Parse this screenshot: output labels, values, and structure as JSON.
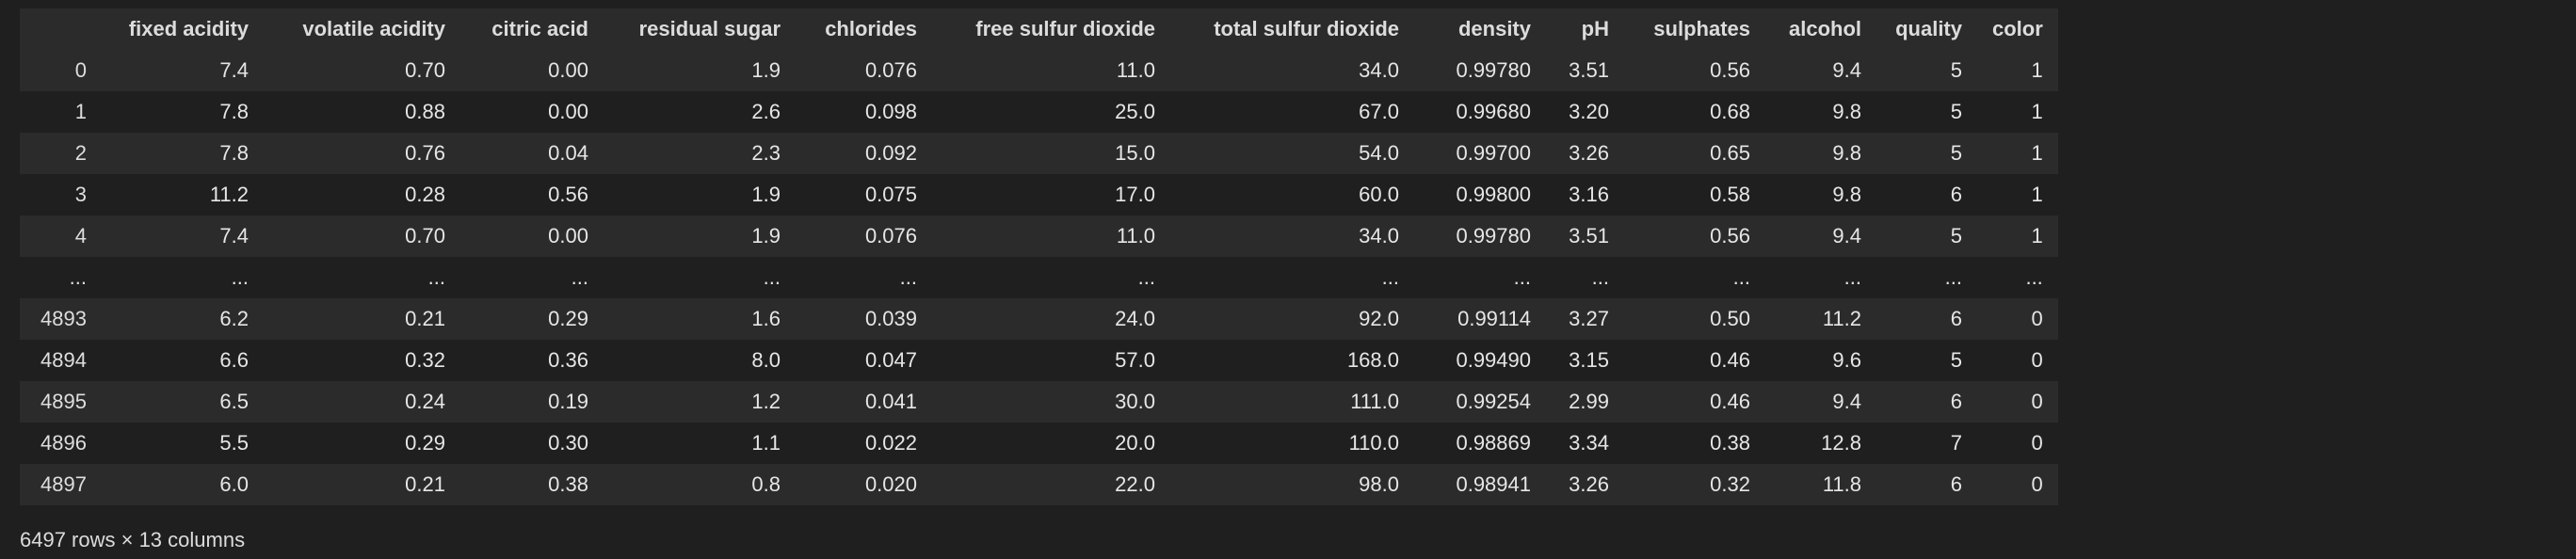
{
  "dataframe": {
    "columns": [
      "",
      "fixed acidity",
      "volatile acidity",
      "citric acid",
      "residual sugar",
      "chlorides",
      "free sulfur dioxide",
      "total sulfur dioxide",
      "density",
      "pH",
      "sulphates",
      "alcohol",
      "quality",
      "color"
    ],
    "rows": [
      [
        "0",
        "7.4",
        "0.70",
        "0.00",
        "1.9",
        "0.076",
        "11.0",
        "34.0",
        "0.99780",
        "3.51",
        "0.56",
        "9.4",
        "5",
        "1"
      ],
      [
        "1",
        "7.8",
        "0.88",
        "0.00",
        "2.6",
        "0.098",
        "25.0",
        "67.0",
        "0.99680",
        "3.20",
        "0.68",
        "9.8",
        "5",
        "1"
      ],
      [
        "2",
        "7.8",
        "0.76",
        "0.04",
        "2.3",
        "0.092",
        "15.0",
        "54.0",
        "0.99700",
        "3.26",
        "0.65",
        "9.8",
        "5",
        "1"
      ],
      [
        "3",
        "11.2",
        "0.28",
        "0.56",
        "1.9",
        "0.075",
        "17.0",
        "60.0",
        "0.99800",
        "3.16",
        "0.58",
        "9.8",
        "6",
        "1"
      ],
      [
        "4",
        "7.4",
        "0.70",
        "0.00",
        "1.9",
        "0.076",
        "11.0",
        "34.0",
        "0.99780",
        "3.51",
        "0.56",
        "9.4",
        "5",
        "1"
      ],
      [
        "...",
        "...",
        "...",
        "...",
        "...",
        "...",
        "...",
        "...",
        "...",
        "...",
        "...",
        "...",
        "...",
        "..."
      ],
      [
        "4893",
        "6.2",
        "0.21",
        "0.29",
        "1.6",
        "0.039",
        "24.0",
        "92.0",
        "0.99114",
        "3.27",
        "0.50",
        "11.2",
        "6",
        "0"
      ],
      [
        "4894",
        "6.6",
        "0.32",
        "0.36",
        "8.0",
        "0.047",
        "57.0",
        "168.0",
        "0.99490",
        "3.15",
        "0.46",
        "9.6",
        "5",
        "0"
      ],
      [
        "4895",
        "6.5",
        "0.24",
        "0.19",
        "1.2",
        "0.041",
        "30.0",
        "111.0",
        "0.99254",
        "2.99",
        "0.46",
        "9.4",
        "6",
        "0"
      ],
      [
        "4896",
        "5.5",
        "0.29",
        "0.30",
        "1.1",
        "0.022",
        "20.0",
        "110.0",
        "0.98869",
        "3.34",
        "0.38",
        "12.8",
        "7",
        "0"
      ],
      [
        "4897",
        "6.0",
        "0.21",
        "0.38",
        "0.8",
        "0.020",
        "22.0",
        "98.0",
        "0.98941",
        "3.26",
        "0.32",
        "11.8",
        "6",
        "0"
      ]
    ],
    "shape_text": "6497 rows × 13 columns"
  },
  "theme": {
    "background": "#1f1f1f",
    "row_stripe": "#2b2b2b",
    "text": "#e6e6e6"
  }
}
